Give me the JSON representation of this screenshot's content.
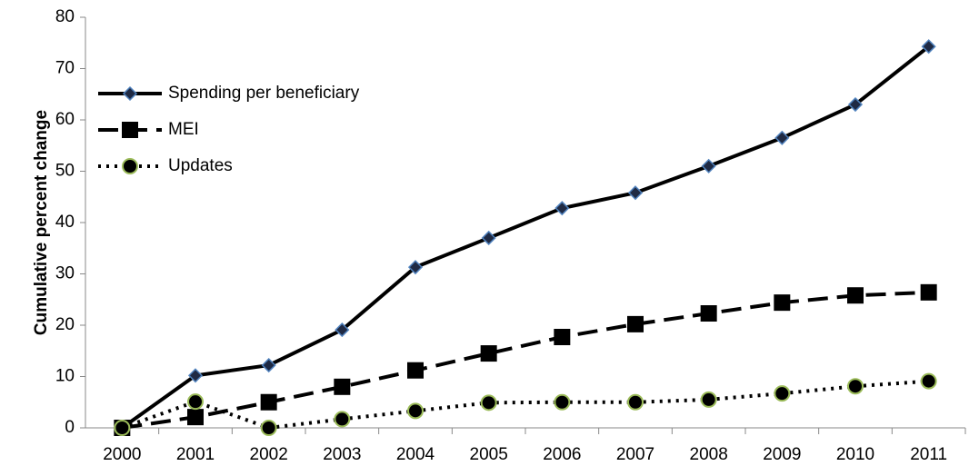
{
  "chart_data": {
    "type": "line",
    "y_label": "Cumulative percent change",
    "categories": [
      "2000",
      "2001",
      "2002",
      "2003",
      "2004",
      "2005",
      "2006",
      "2007",
      "2008",
      "2009",
      "2010",
      "2011"
    ],
    "series": [
      {
        "name": "Spending per beneficiary",
        "color": "#000000",
        "marker": "diamond",
        "line_style": "solid",
        "values": [
          0,
          10.2,
          12.2,
          19.1,
          31.3,
          37,
          42.8,
          45.8,
          51,
          56.5,
          63,
          74.3
        ]
      },
      {
        "name": "MEI",
        "color": "#000000",
        "marker": "square",
        "line_style": "dashed",
        "values": [
          0,
          2.1,
          5,
          8,
          11.2,
          14.5,
          17.7,
          20.2,
          22.3,
          24.4,
          25.8,
          26.4
        ]
      },
      {
        "name": "Updates",
        "color": "#000000",
        "marker": "circle",
        "line_style": "dotted",
        "values": [
          0,
          5.1,
          0,
          1.7,
          3.3,
          4.9,
          5,
          5,
          5.5,
          6.7,
          8.1,
          9.1
        ]
      }
    ],
    "ylim": [
      0,
      80
    ],
    "yticks": [
      0,
      10,
      20,
      30,
      40,
      50,
      60,
      70,
      80
    ],
    "legend": "upper-left"
  }
}
